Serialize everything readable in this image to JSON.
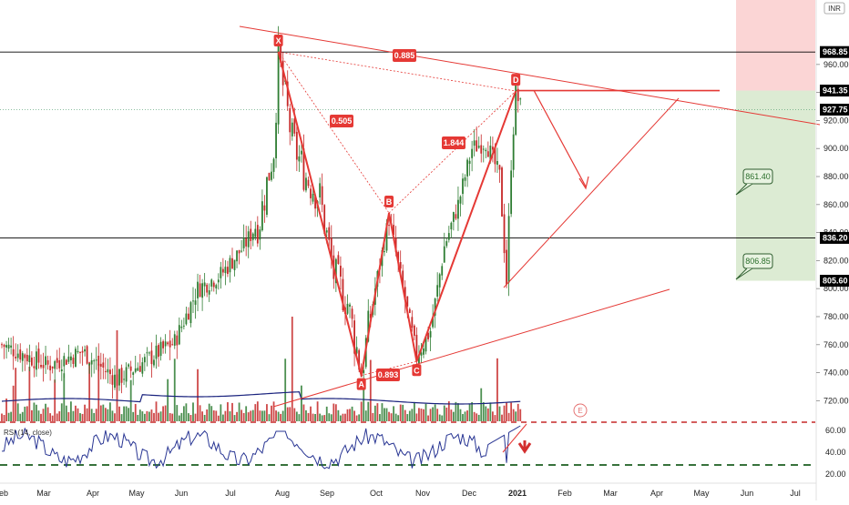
{
  "chart_data": {
    "type": "candlestick",
    "currency": "INR",
    "y_axis": {
      "ylim": [
        704,
        1006
      ],
      "ticks": [
        720,
        740,
        760,
        780,
        800,
        820,
        840,
        860,
        880,
        900,
        920,
        940,
        960
      ],
      "tick_labels": [
        "720.00",
        "740.00",
        "760.00",
        "780.00",
        "800.00",
        "820.00",
        "840.00",
        "860.00",
        "880.00",
        "900.00",
        "920.00",
        "940.00",
        "960.00"
      ]
    },
    "x_axis": {
      "labels": [
        "eb",
        "Mar",
        "Apr",
        "May",
        "Jun",
        "Jul",
        "Aug",
        "Sep",
        "Oct",
        "Nov",
        "Dec",
        "2021",
        "Feb",
        "Mar",
        "Apr",
        "May",
        "Jun",
        "Jul"
      ],
      "bold_label": "2021"
    },
    "price_levels": [
      {
        "name": "high-line",
        "value": 968.85,
        "label": "968.85",
        "color": "#000000"
      },
      {
        "name": "d-line",
        "value": 941.35,
        "label": "941.35",
        "color": "#000000"
      },
      {
        "name": "last-price",
        "value": 927.75,
        "label": "927.75",
        "color": "#000000"
      },
      {
        "name": "support-line",
        "value": 836.2,
        "label": "836.20",
        "color": "#000000"
      },
      {
        "name": "stop-level",
        "value": 805.6,
        "label": "805.60",
        "color": "#000000"
      }
    ],
    "harmonic_points": [
      {
        "label": "X",
        "date_index": 120,
        "price": 969
      },
      {
        "label": "A",
        "date_index": 156,
        "price": 738
      },
      {
        "label": "B",
        "date_index": 168,
        "price": 854
      },
      {
        "label": "C",
        "date_index": 180,
        "price": 748
      },
      {
        "label": "D",
        "date_index": 223,
        "price": 941
      }
    ],
    "ratios": [
      {
        "label": "0.505"
      },
      {
        "label": "0.893"
      },
      {
        "label": "1.844"
      },
      {
        "label": "0.885"
      }
    ],
    "targets": [
      {
        "label": "861.40",
        "value": 861.4
      },
      {
        "label": "806.85",
        "value": 806.85
      }
    ],
    "rsi": {
      "title": "RSI (14, close)",
      "ticks": [
        "60.00",
        "40.00",
        "20.00"
      ],
      "upper_level": 70,
      "lower_level": 30
    },
    "earnings_marker": "E",
    "colors": {
      "up": "#2e7d32",
      "down": "#c62828",
      "pattern": "#e53935",
      "volume_ma": "#1a237e",
      "rsi_line": "#283593",
      "target_zone": "#dcebd3",
      "stop_zone": "#fbd5d5"
    }
  }
}
